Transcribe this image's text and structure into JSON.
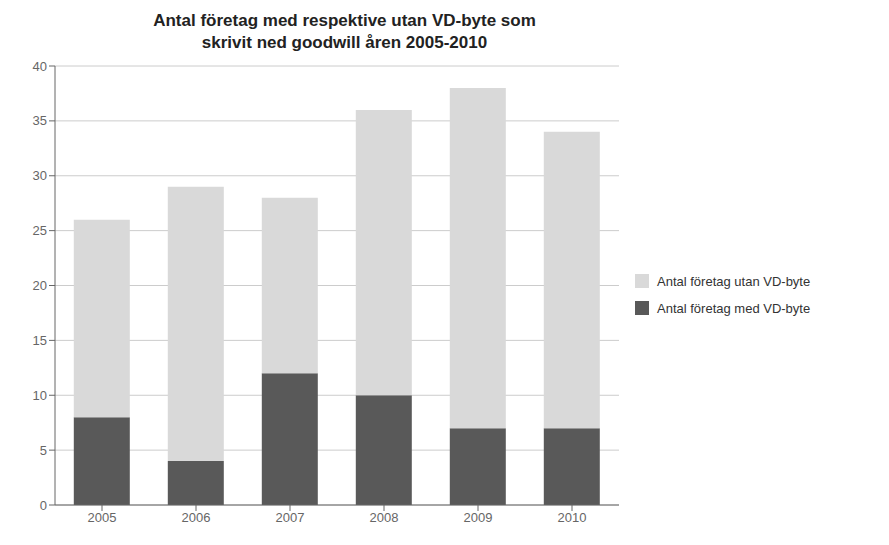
{
  "chart_data": {
    "type": "bar",
    "title": "Antal företag med respektive utan VD-byte som\nskrivit ned goodwill åren 2005-2010",
    "categories": [
      "2005",
      "2006",
      "2007",
      "2008",
      "2009",
      "2010"
    ],
    "series": [
      {
        "name": "Antal företag med VD-byte",
        "color": "#595959",
        "values": [
          8,
          4,
          12,
          10,
          7,
          7
        ]
      },
      {
        "name": "Antal företag utan VD-byte",
        "color": "#d9d9d9",
        "values": [
          18,
          25,
          16,
          26,
          31,
          27
        ]
      }
    ],
    "stacked": true,
    "ylim": [
      0,
      40
    ],
    "yticks": [
      0,
      5,
      10,
      15,
      20,
      25,
      30,
      35,
      40
    ],
    "grid": true,
    "legend": "right"
  }
}
